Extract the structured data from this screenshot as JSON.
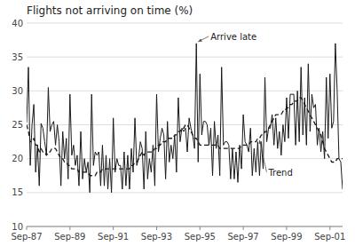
{
  "chart_data": {
    "type": "line",
    "title": "Flights not arriving on time (%)",
    "categories": [
      "Sep-87",
      null,
      null,
      null,
      null,
      null,
      null,
      null,
      null,
      null,
      null,
      null,
      null,
      null,
      null,
      null,
      null,
      null,
      null,
      null,
      null,
      null,
      null,
      null,
      "Sep-89",
      null,
      null,
      null,
      null,
      null,
      null,
      null,
      null,
      null,
      null,
      null,
      null,
      null,
      null,
      null,
      null,
      null,
      null,
      null,
      null,
      null,
      null,
      null,
      "Sep-91",
      null,
      null,
      null,
      null,
      null,
      null,
      null,
      null,
      null,
      null,
      null,
      null,
      null,
      null,
      null,
      null,
      null,
      null,
      null,
      null,
      null,
      null,
      null,
      "Sep-93",
      null,
      null,
      null,
      null,
      null,
      null,
      null,
      null,
      null,
      null,
      null,
      null,
      null,
      null,
      null,
      null,
      null,
      null,
      null,
      null,
      null,
      null,
      null,
      "Sep-95",
      null,
      null,
      null,
      null,
      null,
      null,
      null,
      null,
      null,
      null,
      null,
      null,
      null,
      null,
      null,
      null,
      null,
      null,
      null,
      null,
      null,
      null,
      null,
      "Sep-97",
      null,
      null,
      null,
      null,
      null,
      null,
      null,
      null,
      null,
      null,
      null,
      null,
      null,
      null,
      null,
      null,
      null,
      null,
      null,
      null,
      null,
      null,
      null,
      "Sep-99",
      null,
      null,
      null,
      null,
      null,
      null,
      null,
      null,
      null,
      null,
      null,
      null,
      null,
      null,
      null,
      null,
      null,
      null,
      null,
      null,
      null,
      null,
      null,
      "Sep-01",
      null,
      null,
      null,
      null,
      null,
      null,
      null
    ],
    "series": [
      {
        "name": "Arrive late",
        "color": "#1a1a1a",
        "line_style": "solid",
        "values": [
          25.3,
          33.5,
          19.0,
          25.0,
          28.0,
          18.0,
          22.0,
          16.0,
          25.2,
          24.5,
          22.5,
          20.5,
          30.5,
          24.0,
          25.0,
          25.5,
          22.0,
          25.0,
          22.5,
          16.0,
          24.0,
          20.0,
          23.0,
          17.0,
          29.5,
          20.5,
          22.0,
          19.0,
          20.5,
          16.0,
          24.0,
          17.0,
          20.0,
          18.0,
          19.5,
          15.0,
          29.5,
          19.0,
          21.0,
          20.5,
          21.0,
          16.0,
          22.0,
          16.0,
          20.5,
          15.5,
          20.0,
          15.0,
          26.0,
          18.0,
          20.0,
          19.0,
          19.0,
          15.5,
          21.0,
          16.0,
          20.5,
          15.5,
          21.5,
          18.0,
          26.0,
          19.0,
          20.0,
          22.5,
          21.5,
          15.5,
          24.0,
          17.0,
          20.0,
          18.0,
          22.0,
          16.0,
          29.5,
          21.0,
          23.0,
          24.5,
          23.5,
          17.0,
          25.5,
          19.5,
          22.0,
          20.0,
          23.5,
          18.0,
          29.0,
          22.5,
          24.5,
          24.0,
          24.5,
          21.0,
          26.0,
          24.5,
          23.5,
          21.5,
          37.0,
          19.5,
          32.5,
          23.5,
          25.5,
          25.5,
          25.0,
          22.0,
          24.5,
          17.5,
          25.5,
          21.5,
          23.5,
          17.5,
          33.5,
          22.0,
          22.5,
          22.5,
          22.0,
          17.0,
          21.5,
          17.0,
          21.0,
          16.5,
          22.0,
          18.5,
          26.5,
          22.5,
          22.0,
          21.0,
          24.5,
          17.5,
          21.5,
          18.0,
          22.5,
          17.5,
          22.5,
          18.5,
          32.0,
          22.5,
          24.5,
          24.5,
          26.5,
          22.0,
          26.0,
          21.5,
          24.0,
          20.5,
          25.0,
          22.5,
          29.0,
          23.0,
          29.5,
          29.5,
          29.5,
          22.0,
          30.0,
          22.5,
          33.5,
          23.5,
          29.0,
          22.0,
          34.0,
          24.0,
          29.5,
          27.5,
          28.0,
          22.0,
          24.5,
          21.0,
          24.0,
          20.0,
          32.0,
          23.0,
          32.5,
          24.5,
          25.5,
          37.0,
          30.0,
          20.0,
          19.5,
          15.5
        ]
      },
      {
        "name": "Trend",
        "color": "#1a1a1a",
        "line_style": "dashed",
        "values": [
          25.0,
          24.0,
          22.5,
          22.5,
          23.0,
          22.0,
          22.0,
          21.0,
          21.5,
          21.0,
          21.0,
          20.5,
          21.0,
          21.0,
          21.5,
          21.5,
          21.5,
          21.0,
          20.5,
          20.0,
          20.0,
          19.5,
          19.5,
          19.0,
          19.0,
          18.5,
          18.5,
          18.5,
          18.5,
          18.0,
          18.0,
          18.0,
          18.0,
          18.0,
          18.0,
          17.5,
          17.5,
          17.5,
          17.5,
          18.0,
          18.0,
          18.0,
          18.5,
          18.5,
          18.5,
          18.5,
          18.5,
          18.5,
          18.5,
          18.5,
          18.5,
          18.5,
          18.5,
          18.5,
          18.5,
          18.5,
          18.5,
          18.5,
          19.0,
          19.0,
          19.5,
          19.5,
          20.0,
          20.5,
          21.0,
          20.5,
          21.0,
          21.0,
          21.0,
          21.0,
          21.0,
          21.5,
          21.5,
          22.0,
          22.0,
          22.5,
          22.5,
          22.5,
          23.0,
          23.0,
          23.0,
          23.0,
          23.5,
          23.5,
          24.0,
          24.0,
          24.5,
          24.5,
          25.0,
          25.0,
          24.5,
          24.0,
          23.5,
          23.0,
          23.0,
          22.5,
          22.0,
          22.0,
          22.0,
          22.0,
          22.0,
          22.0,
          22.0,
          22.0,
          22.0,
          22.0,
          22.0,
          21.5,
          21.5,
          21.5,
          21.5,
          21.5,
          21.5,
          21.5,
          21.5,
          21.5,
          21.5,
          21.5,
          21.5,
          22.0,
          22.0,
          22.0,
          22.0,
          22.0,
          22.5,
          22.5,
          22.5,
          22.5,
          23.0,
          23.0,
          23.5,
          23.5,
          24.0,
          24.0,
          24.5,
          25.0,
          25.5,
          26.0,
          26.5,
          26.5,
          26.5,
          26.5,
          27.0,
          27.0,
          27.5,
          27.5,
          28.0,
          28.0,
          28.5,
          28.5,
          28.5,
          29.0,
          29.0,
          28.5,
          28.0,
          27.5,
          27.0,
          26.5,
          26.0,
          25.5,
          25.0,
          24.5,
          24.0,
          23.5,
          22.5,
          21.5,
          21.0,
          20.5,
          20.0,
          19.5,
          19.5,
          19.5,
          20.0,
          20.0,
          20.0,
          20.0
        ]
      }
    ],
    "ylim": [
      10,
      40
    ],
    "yticks": [
      10,
      15,
      20,
      25,
      30,
      35,
      40
    ],
    "grid": true
  }
}
